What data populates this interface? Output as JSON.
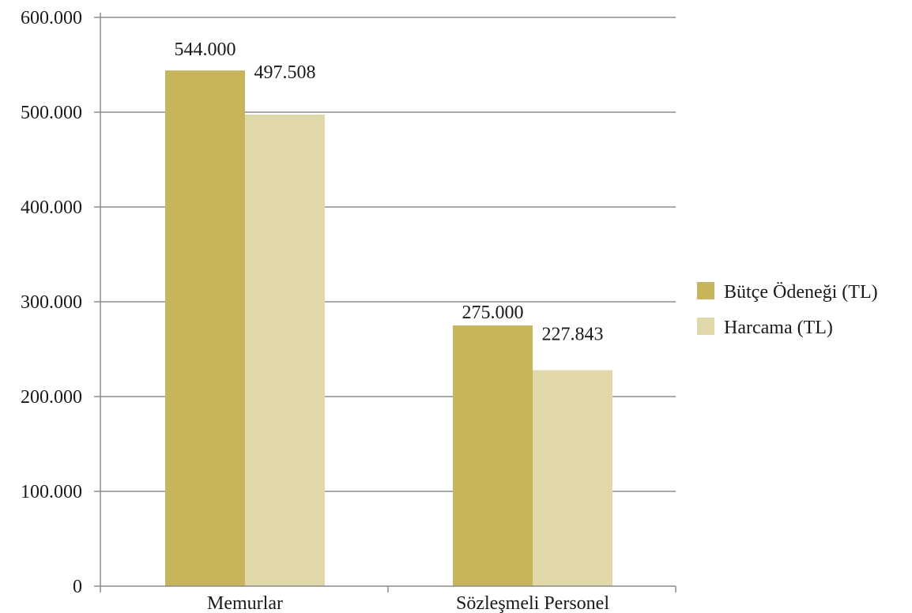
{
  "chart_data": {
    "type": "bar",
    "title": "",
    "xlabel": "",
    "ylabel": "",
    "categories": [
      "Memurlar",
      "Sözleşmeli Personel"
    ],
    "series": [
      {
        "name": "Bütçe Ödeneği (TL)",
        "values": [
          544000,
          275000
        ],
        "labels": [
          "544.000",
          "275.000"
        ],
        "color": "#c8b45a"
      },
      {
        "name": "Harcama (TL)",
        "values": [
          497508,
          227843
        ],
        "labels": [
          "497.508",
          "227.843"
        ],
        "color": "#e0d8a8"
      }
    ],
    "ylim": [
      0,
      600000
    ],
    "yticks": [
      0,
      100000,
      200000,
      300000,
      400000,
      500000,
      600000
    ],
    "ytick_labels": [
      "0",
      "100.000",
      "200.000",
      "300.000",
      "400.000",
      "500.000",
      "600.000"
    ],
    "grid": true,
    "gridline_color": "#8c8c8c",
    "legend_position": "right"
  }
}
